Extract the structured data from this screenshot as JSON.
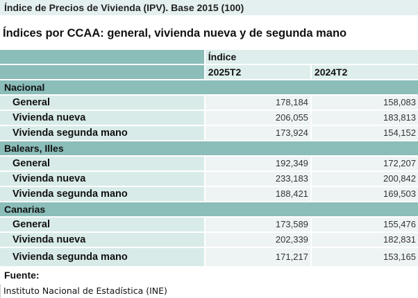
{
  "title": "Índice de Precios de Vivienda (IPV). Base 2015 (100)",
  "subtitle": "Índices por CCAA: general, vivienda nueva y de segunda mano",
  "table": {
    "header_group": "Índice",
    "periods": [
      "2025T2",
      "2024T2"
    ],
    "groups": [
      {
        "name": "Nacional",
        "rows": [
          {
            "label": "General",
            "values": [
              "178,184",
              "158,083"
            ]
          },
          {
            "label": "Vivienda nueva",
            "values": [
              "206,055",
              "183,813"
            ]
          },
          {
            "label": "Vivienda segunda mano",
            "values": [
              "173,924",
              "154,152"
            ]
          }
        ]
      },
      {
        "name": "Balears, Illes",
        "rows": [
          {
            "label": "General",
            "values": [
              "192,349",
              "172,207"
            ]
          },
          {
            "label": "Vivienda nueva",
            "values": [
              "233,183",
              "200,842"
            ]
          },
          {
            "label": "Vivienda segunda mano",
            "values": [
              "188,421",
              "169,503"
            ]
          }
        ]
      },
      {
        "name": "Canarias",
        "rows": [
          {
            "label": "General",
            "values": [
              "173,589",
              "155,476"
            ]
          },
          {
            "label": "Vivienda nueva",
            "values": [
              "202,339",
              "182,831"
            ]
          },
          {
            "label": "Vivienda segunda mano",
            "values": [
              "171,217",
              "153,165"
            ]
          }
        ]
      }
    ]
  },
  "footer": {
    "label": "Fuente:",
    "source": "Instituto Nacional de Estadística (INE)"
  }
}
